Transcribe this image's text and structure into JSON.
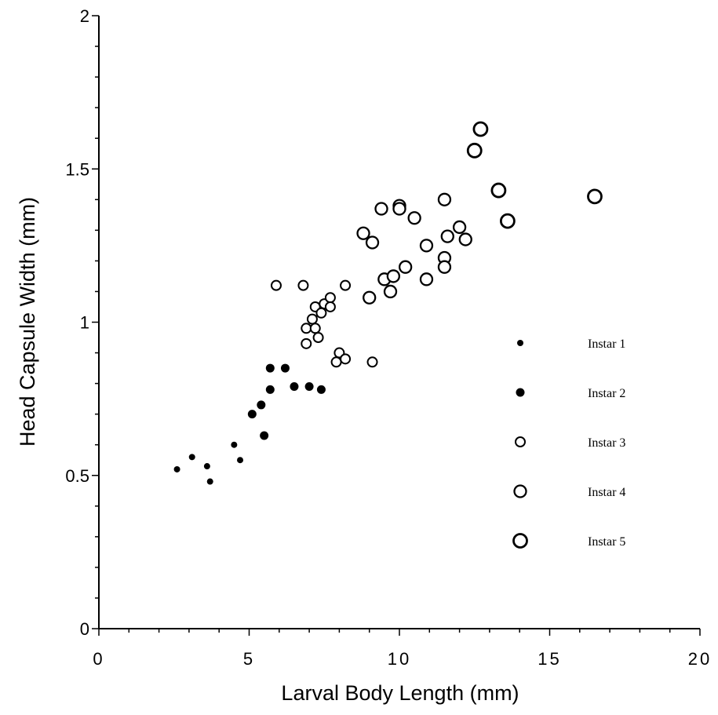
{
  "chart_data": {
    "type": "scatter",
    "xlabel": "Larval Body Length (mm)",
    "ylabel": "Head Capsule Width (mm)",
    "xlim": [
      0,
      20
    ],
    "ylim": [
      0,
      2
    ],
    "xticks": [
      "0",
      "5",
      "10",
      "15",
      "20"
    ],
    "yticks": [
      "0",
      "0.5",
      "1",
      "1.5",
      "2"
    ],
    "grid": false,
    "legend_position": "right",
    "series": [
      {
        "name": "Instar 1",
        "marker": "small-filled-circle",
        "points": [
          [
            2.6,
            0.52
          ],
          [
            3.1,
            0.56
          ],
          [
            3.6,
            0.53
          ],
          [
            3.7,
            0.48
          ],
          [
            4.5,
            0.6
          ],
          [
            4.7,
            0.55
          ]
        ]
      },
      {
        "name": "Instar 2",
        "marker": "filled-circle",
        "points": [
          [
            5.1,
            0.7
          ],
          [
            5.4,
            0.73
          ],
          [
            5.5,
            0.63
          ],
          [
            5.7,
            0.78
          ],
          [
            5.7,
            0.85
          ],
          [
            6.2,
            0.85
          ],
          [
            6.5,
            0.79
          ],
          [
            7.0,
            0.79
          ],
          [
            7.4,
            0.78
          ]
        ]
      },
      {
        "name": "Instar 3",
        "marker": "small-open-circle",
        "points": [
          [
            5.9,
            1.12
          ],
          [
            6.8,
            1.12
          ],
          [
            6.9,
            0.98
          ],
          [
            6.9,
            0.93
          ],
          [
            7.1,
            1.01
          ],
          [
            7.2,
            1.05
          ],
          [
            7.2,
            0.98
          ],
          [
            7.3,
            0.95
          ],
          [
            7.4,
            1.03
          ],
          [
            7.5,
            1.06
          ],
          [
            7.7,
            1.08
          ],
          [
            7.7,
            1.05
          ],
          [
            7.9,
            0.87
          ],
          [
            8.0,
            0.9
          ],
          [
            8.2,
            0.88
          ],
          [
            8.2,
            1.12
          ],
          [
            9.1,
            0.87
          ]
        ]
      },
      {
        "name": "Instar 4",
        "marker": "open-circle",
        "points": [
          [
            8.8,
            1.29
          ],
          [
            9.0,
            1.08
          ],
          [
            9.1,
            1.26
          ],
          [
            9.4,
            1.37
          ],
          [
            9.5,
            1.14
          ],
          [
            9.7,
            1.1
          ],
          [
            9.8,
            1.15
          ],
          [
            10.0,
            1.38
          ],
          [
            10.0,
            1.37
          ],
          [
            10.2,
            1.18
          ],
          [
            10.5,
            1.34
          ],
          [
            10.9,
            1.14
          ],
          [
            10.9,
            1.25
          ],
          [
            11.5,
            1.4
          ],
          [
            11.5,
            1.21
          ],
          [
            11.5,
            1.18
          ],
          [
            11.6,
            1.28
          ],
          [
            12.0,
            1.31
          ],
          [
            12.2,
            1.27
          ]
        ]
      },
      {
        "name": "Instar 5",
        "marker": "large-open-circle",
        "points": [
          [
            12.5,
            1.56
          ],
          [
            12.7,
            1.63
          ],
          [
            13.3,
            1.43
          ],
          [
            13.6,
            1.33
          ],
          [
            16.5,
            1.41
          ]
        ]
      }
    ]
  }
}
